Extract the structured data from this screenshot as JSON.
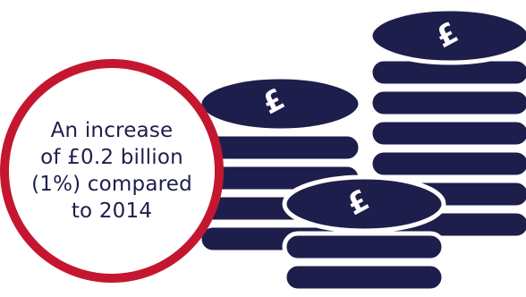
{
  "colors": {
    "coin_navy": "#1e1e4c",
    "ring_red": "#c4172f",
    "background": "#ffffff",
    "text": "#1e1e4c"
  },
  "icons": {
    "coin_symbol": "pound-sign-icon"
  },
  "coins": {
    "symbol": "£"
  },
  "callout": {
    "lines": [
      "An increase",
      "of £0.2 billion",
      "(1%) compared",
      "to 2014"
    ]
  }
}
